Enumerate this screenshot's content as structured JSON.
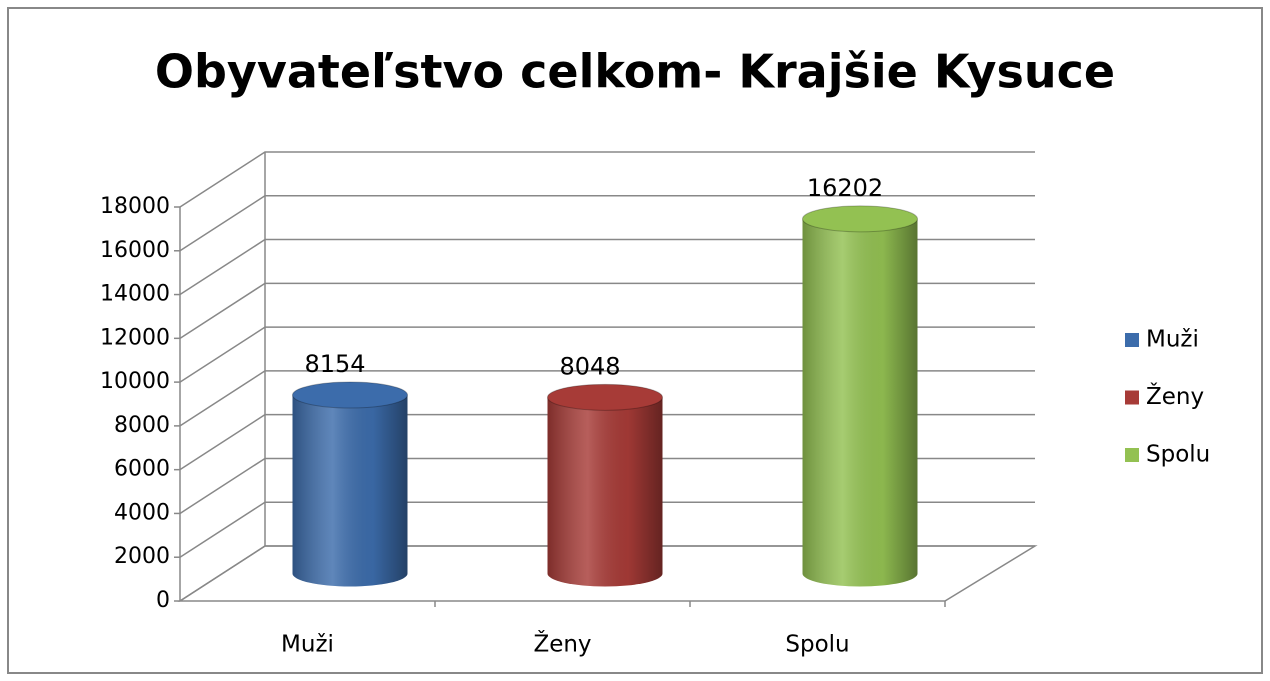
{
  "chart_data": {
    "type": "bar3d",
    "title": "Obyvateľstvo celkom- Krajšie Kysuce",
    "categories": [
      "Muži",
      "Ženy",
      "Spolu"
    ],
    "values": [
      8154,
      8048,
      16202
    ],
    "colors": [
      "#3c6cab",
      "#a73b37",
      "#93c152"
    ],
    "ylim": [
      0,
      18000
    ],
    "yticks": [
      0,
      2000,
      4000,
      6000,
      8000,
      10000,
      12000,
      14000,
      16000,
      18000
    ],
    "grid": true,
    "legend": "right"
  }
}
